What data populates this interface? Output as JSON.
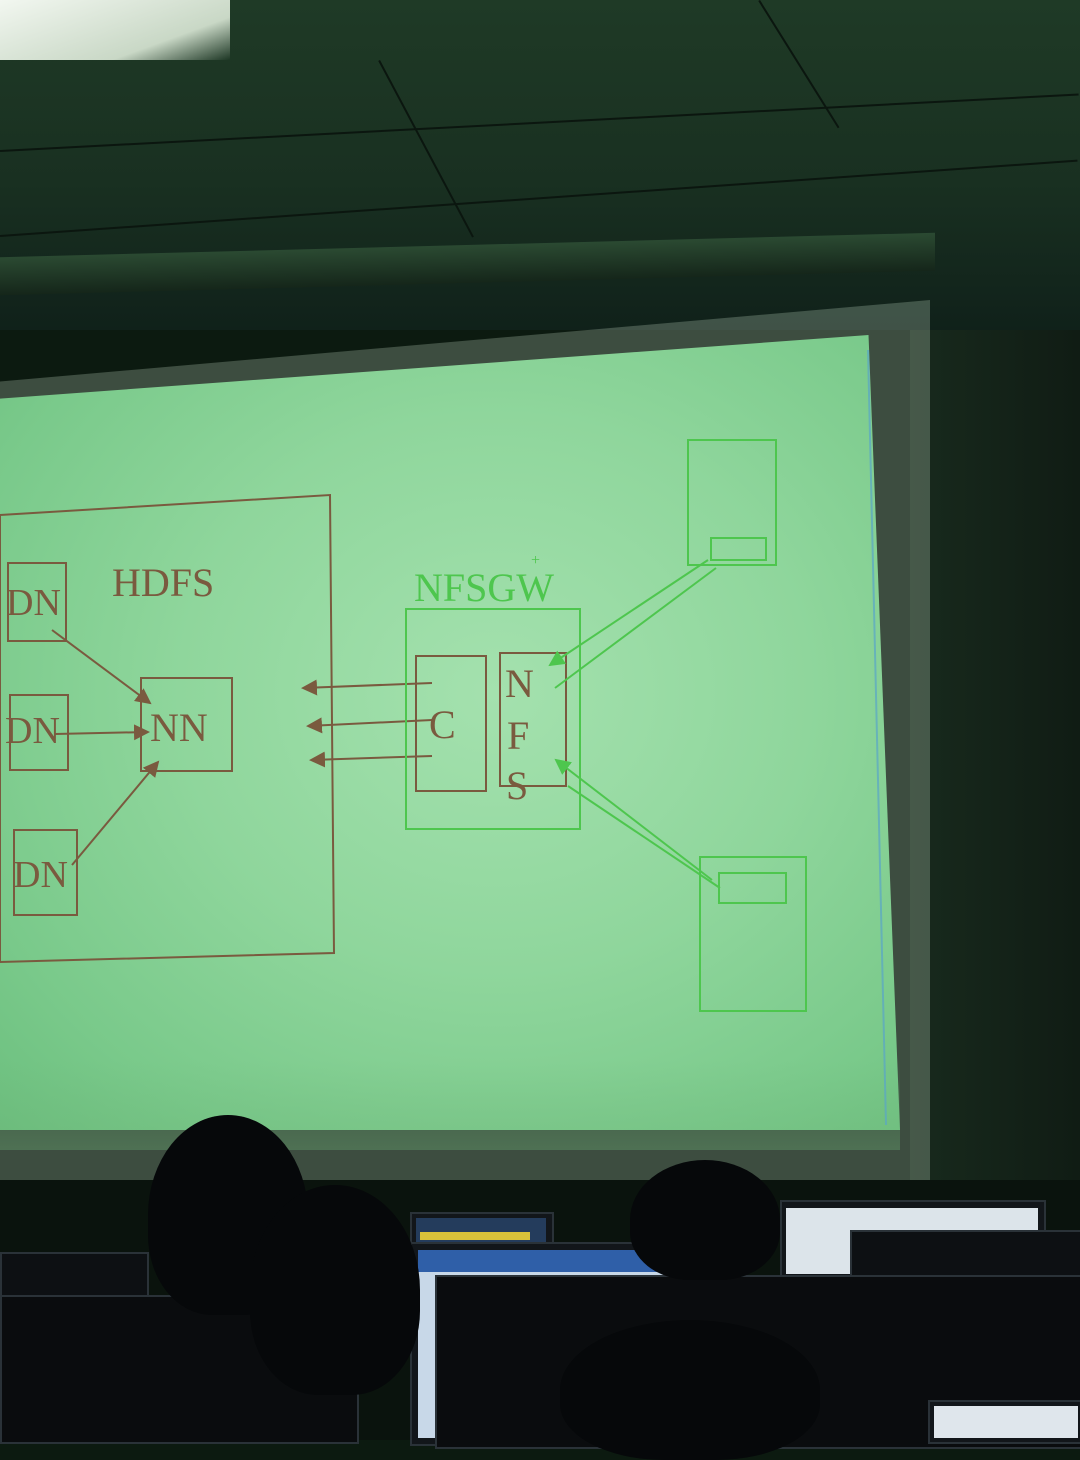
{
  "diagram": {
    "hdfs_label": "HDFS",
    "data_nodes": [
      "DN",
      "DN",
      "DN"
    ],
    "name_node": "NN",
    "gateway_label": "NFSGW",
    "gateway_mark": "+",
    "client_label": "C",
    "nfs_letters": [
      "N",
      "F",
      "S"
    ]
  },
  "colors": {
    "hdfs_ink": "#7a5a3f",
    "nfs_ink": "#4ec64e",
    "screen": "#8fd69c"
  }
}
